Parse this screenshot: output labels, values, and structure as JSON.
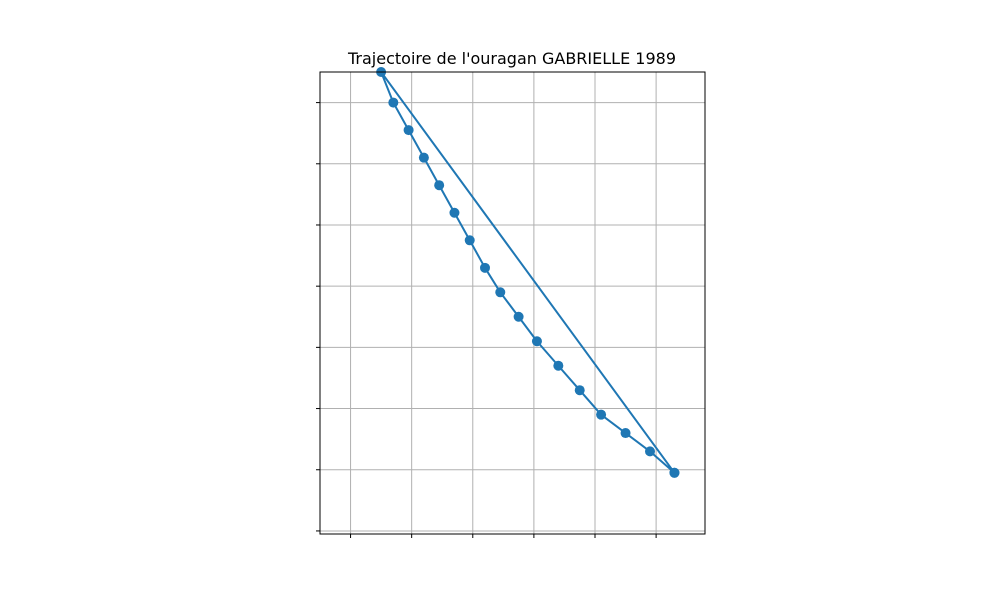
{
  "chart_data": {
    "type": "line",
    "title": "Trajectoire de l'ouragan GABRIELLE 1989",
    "xlabel": "",
    "ylabel": "",
    "xlim": [
      -0.5,
      5.8
    ],
    "ylim": [
      -0.05,
      7.5
    ],
    "grid": true,
    "colors": {
      "track": "#1f77b4",
      "grid": "#b0b0b0",
      "frame": "#000000"
    },
    "series": [
      {
        "x": [
          5.3,
          4.9,
          4.5,
          4.1,
          3.75,
          3.4,
          3.05,
          2.75,
          2.45,
          2.2,
          1.95,
          1.7,
          1.45,
          1.2,
          0.95,
          0.7,
          0.5,
          5.3
        ],
        "y": [
          0.95,
          1.3,
          1.6,
          1.9,
          2.3,
          2.7,
          3.1,
          3.5,
          3.9,
          4.3,
          4.75,
          5.2,
          5.65,
          6.1,
          6.55,
          7.0,
          7.5,
          0.95
        ]
      }
    ]
  }
}
